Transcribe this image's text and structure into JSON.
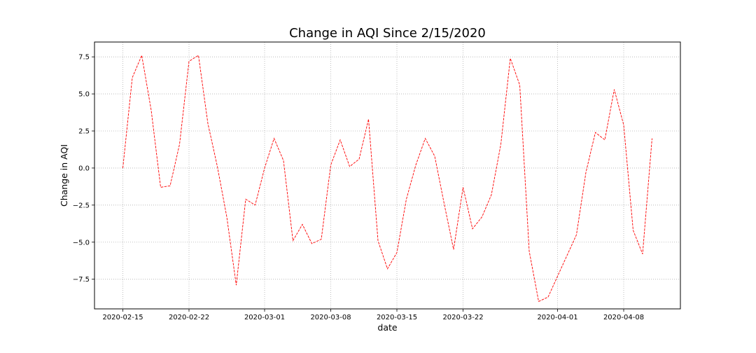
{
  "chart_data": {
    "type": "line",
    "title": "Change in AQI Since 2/15/2020",
    "xlabel": "date",
    "ylabel": "Change in AQI",
    "x_start": "2020-02-15",
    "xlim": [
      "2020-02-12",
      "2020-04-14"
    ],
    "ylim": [
      -9.5,
      8.5
    ],
    "x_ticks": [
      "2020-02-15",
      "2020-02-22",
      "2020-03-01",
      "2020-03-08",
      "2020-03-15",
      "2020-03-22",
      "2020-04-01",
      "2020-04-08"
    ],
    "y_ticks": [
      7.5,
      5.0,
      2.5,
      0.0,
      -2.5,
      -5.0,
      -7.5
    ],
    "y_tick_labels": [
      "7.5",
      "5.0",
      "2.5",
      "0.0",
      "−2.5",
      "−5.0",
      "−7.5"
    ],
    "grid": true,
    "line_style": "dashed",
    "color": "#ff0000",
    "series": [
      {
        "x": [
          "2020-02-15",
          "2020-02-16",
          "2020-02-17",
          "2020-02-18",
          "2020-02-19",
          "2020-02-20",
          "2020-02-21",
          "2020-02-22",
          "2020-02-23",
          "2020-02-24",
          "2020-02-25",
          "2020-02-26",
          "2020-02-27",
          "2020-02-28",
          "2020-02-29",
          "2020-03-01",
          "2020-03-02",
          "2020-03-03",
          "2020-03-04",
          "2020-03-05",
          "2020-03-06",
          "2020-03-07",
          "2020-03-08",
          "2020-03-09",
          "2020-03-10",
          "2020-03-11",
          "2020-03-12",
          "2020-03-13",
          "2020-03-14",
          "2020-03-15",
          "2020-03-16",
          "2020-03-17",
          "2020-03-18",
          "2020-03-19",
          "2020-03-20",
          "2020-03-21",
          "2020-03-22",
          "2020-03-23",
          "2020-03-24",
          "2020-03-25",
          "2020-03-26",
          "2020-03-27",
          "2020-03-28",
          "2020-03-29",
          "2020-03-30",
          "2020-03-31",
          "2020-04-01",
          "2020-04-02",
          "2020-04-03",
          "2020-04-04",
          "2020-04-05",
          "2020-04-06",
          "2020-04-07",
          "2020-04-08",
          "2020-04-09",
          "2020-04-10",
          "2020-04-11"
        ],
        "y": [
          0.0,
          6.1,
          7.6,
          3.9,
          -1.3,
          -1.2,
          1.6,
          7.2,
          7.6,
          3.0,
          0.1,
          -3.3,
          -7.9,
          -2.1,
          -2.5,
          0.0,
          2.0,
          0.5,
          -4.9,
          -3.8,
          -5.1,
          -4.8,
          0.2,
          1.9,
          0.1,
          0.6,
          3.3,
          -4.9,
          -6.8,
          -5.7,
          -2.1,
          0.2,
          2.0,
          0.8,
          -2.4,
          -5.5,
          -1.3,
          -4.1,
          -3.3,
          -1.8,
          1.6,
          7.4,
          5.6,
          -5.6,
          -9.0,
          -8.7,
          -7.3,
          -5.9,
          -4.5,
          -0.3,
          2.4,
          1.9,
          5.3,
          2.9,
          -4.2,
          -5.8,
          2.0
        ]
      }
    ]
  }
}
